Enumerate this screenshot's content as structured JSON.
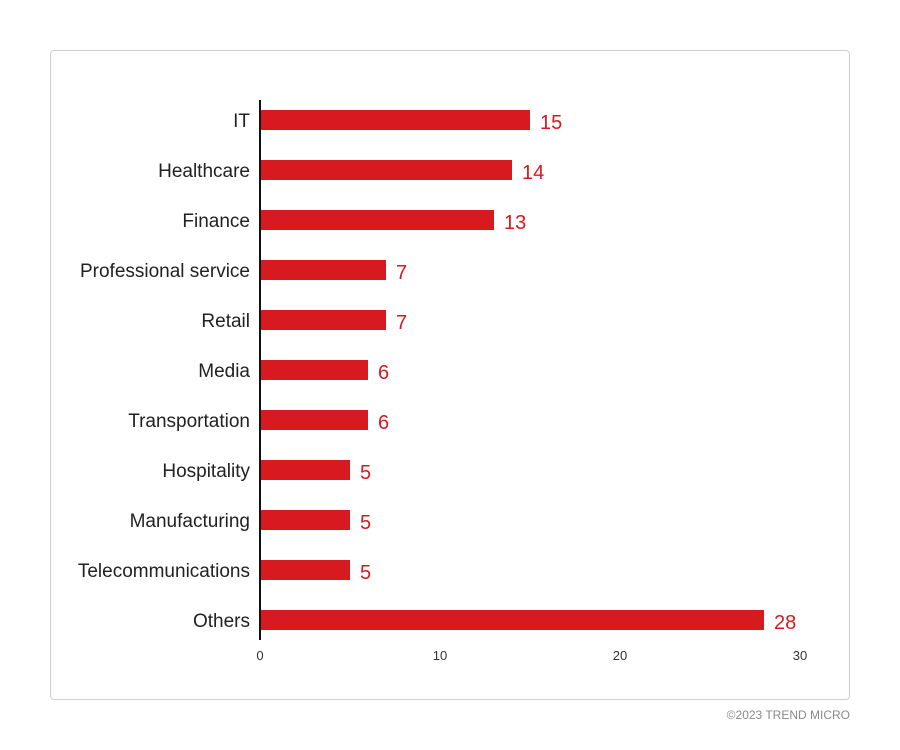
{
  "chart_data": {
    "type": "bar",
    "orientation": "horizontal",
    "categories": [
      "IT",
      "Healthcare",
      "Finance",
      "Professional service",
      "Retail",
      "Media",
      "Transportation",
      "Hospitality",
      "Manufacturing",
      "Telecommunications",
      "Others"
    ],
    "values": [
      15,
      14,
      13,
      7,
      7,
      6,
      6,
      5,
      5,
      5,
      28
    ],
    "xlim": [
      0,
      30
    ],
    "xticks": [
      0,
      10,
      20,
      30
    ],
    "grid": false,
    "bar_color": "#d71920",
    "label_color": "#d71920"
  },
  "footer": {
    "copyright": "©2023 TREND MICRO"
  }
}
